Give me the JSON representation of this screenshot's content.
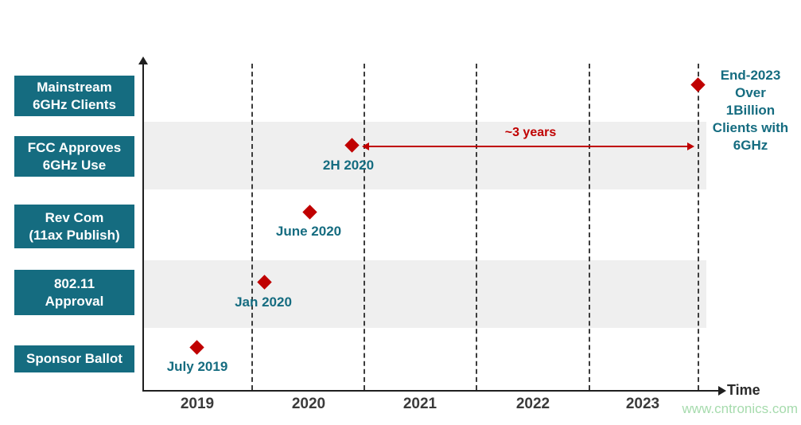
{
  "chart_data": {
    "type": "scatter",
    "title": "",
    "xlabel": "Time",
    "x_ticks": [
      "2019",
      "2020",
      "2021",
      "2022",
      "2023"
    ],
    "y_categories_bottom_to_top": [
      "Sponsor Ballot",
      "802.11 Approval",
      "Rev Com (11ax Publish)",
      "FCC Approves 6GHz Use",
      "Mainstream 6GHz Clients"
    ],
    "marker": "diamond",
    "marker_color": "#C00000",
    "points": [
      {
        "x": "July 2019",
        "category": "Sponsor Ballot"
      },
      {
        "x": "Jan 2020",
        "category": "802.11 Approval"
      },
      {
        "x": "June 2020",
        "category": "Rev Com (11ax Publish)"
      },
      {
        "x": "2H 2020",
        "category": "FCC Approves 6GHz Use"
      },
      {
        "x": "End-2023",
        "category": "Mainstream 6GHz Clients",
        "note": "Over 1Billion Clients with 6GHz"
      }
    ],
    "annotations": [
      {
        "text": "~3 years",
        "from_x": "2H 2020",
        "to_x": "End-2023",
        "color": "#C00000"
      }
    ],
    "shaded_rows": [
      "FCC Approves 6GHz Use",
      "802.11 Approval"
    ],
    "grid": "dashed-vertical",
    "legend": "none"
  },
  "rows": [
    {
      "label": "Mainstream\n6GHz Clients"
    },
    {
      "label": "FCC Approves\n6GHz Use"
    },
    {
      "label": "Rev Com\n(11ax Publish)"
    },
    {
      "label": "802.11\nApproval"
    },
    {
      "label": "Sponsor Ballot"
    }
  ],
  "milestones": [
    {
      "label": "July 2019"
    },
    {
      "label": "Jan 2020"
    },
    {
      "label": "June 2020"
    },
    {
      "label": "2H 2020"
    }
  ],
  "end_annotation": {
    "text": "End-2023\nOver\n1Billion\nClients with\n6GHz"
  },
  "duration_annotation": {
    "text": "~3 years"
  },
  "axis": {
    "time_label": "Time",
    "years": [
      "2019",
      "2020",
      "2021",
      "2022",
      "2023"
    ]
  },
  "watermark": {
    "text": "www.cntronics.com"
  },
  "colors": {
    "teal": "#156C80",
    "red": "#C00000",
    "band_gray": "#EFEFEF",
    "axis_dark": "#1F1F1F",
    "year_label": "#3A3A3A",
    "watermark_green": "#A6DBAD"
  }
}
